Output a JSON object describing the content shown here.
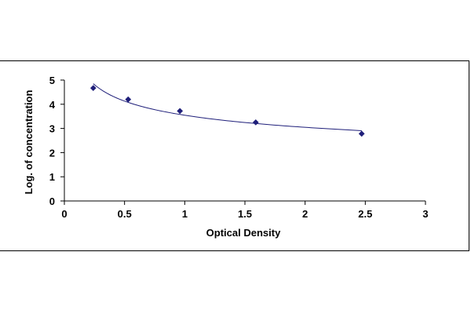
{
  "chart_data": {
    "type": "scatter",
    "title": "",
    "xlabel": "Optical Density",
    "ylabel": "Log. of concentration",
    "xlim": [
      0,
      3
    ],
    "ylim": [
      0,
      5
    ],
    "x_ticks": [
      "0",
      "0.5",
      "1",
      "1.5",
      "2",
      "2.5",
      "3"
    ],
    "y_ticks": [
      "0",
      "1",
      "2",
      "3",
      "4",
      "5"
    ],
    "grid": false,
    "legend": "none",
    "trendline": "smooth fitted curve through points",
    "series": [
      {
        "x": [
          0.24,
          0.53,
          0.96,
          1.59,
          2.47
        ],
        "y": [
          4.67,
          4.2,
          3.72,
          3.25,
          2.78
        ]
      }
    ],
    "colors": {
      "marker": "#1f1f7a",
      "line": "#1f1f7a",
      "axis": "#000000"
    }
  }
}
